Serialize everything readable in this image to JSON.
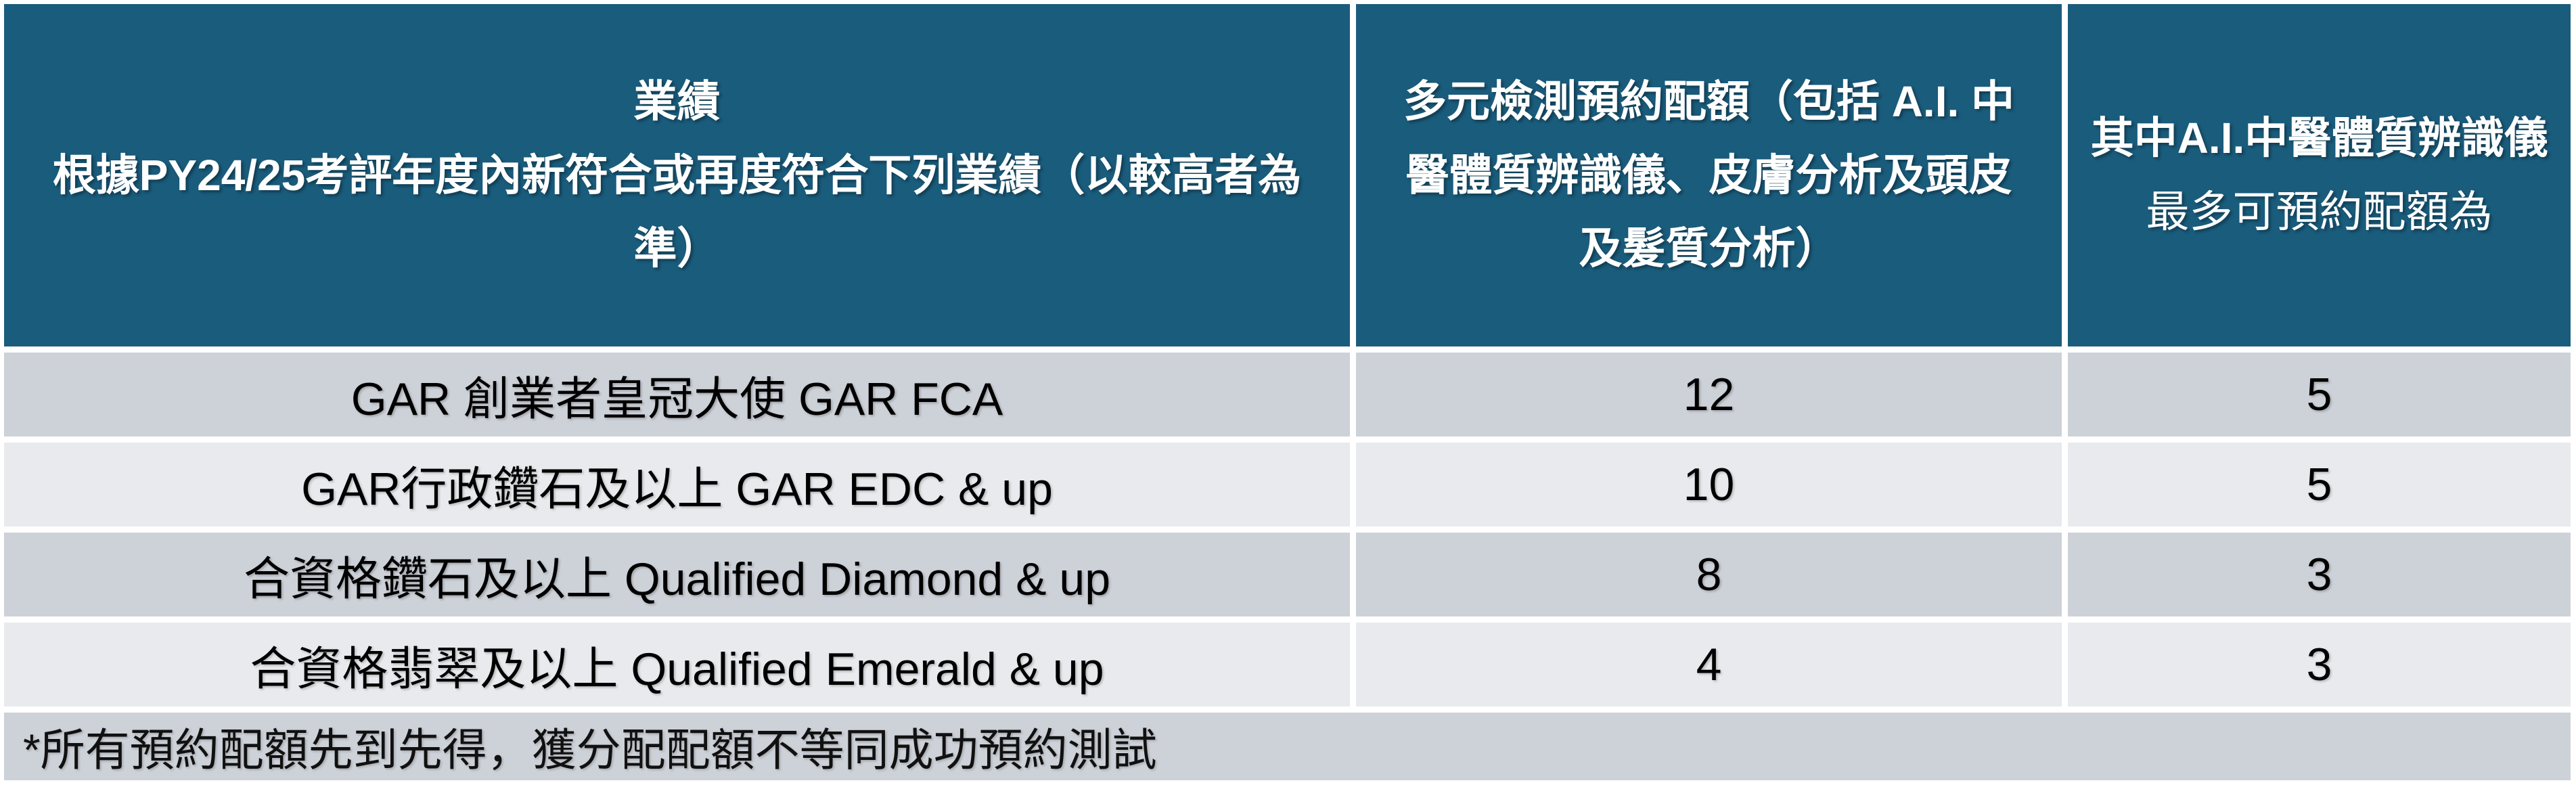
{
  "table": {
    "header": {
      "col1_title": "業績",
      "col1_subtitle": "根據PY24/25考評年度內新符合或再度符合下列業績（以較高者為準）",
      "col2": "多元檢測預約配額（包括 A.I. 中醫體質辨識儀、皮膚分析及頭皮及髮質分析）",
      "col3_bold": "其中A.I.中醫體質辨識儀",
      "col3_regular": "最多可預約配額為"
    },
    "rows": [
      {
        "label": "GAR 創業者皇冠大使 GAR FCA",
        "quota": "12",
        "ai_quota": "5"
      },
      {
        "label": "GAR行政鑽石及以上 GAR EDC & up",
        "quota": "10",
        "ai_quota": "5"
      },
      {
        "label": "合資格鑽石及以上 Qualified Diamond & up",
        "quota": "8",
        "ai_quota": "3"
      },
      {
        "label": "合資格翡翠及以上 Qualified Emerald & up",
        "quota": "4",
        "ai_quota": "3"
      }
    ],
    "footnote": "*所有預約配額先到先得，獲分配配額不等同成功預約測試"
  },
  "colors": {
    "header_background": "#1a5c7c",
    "header_text": "#ffffff",
    "row_dark": "#cdd1d8",
    "row_light": "#e8eaee",
    "body_text": "#000000"
  }
}
